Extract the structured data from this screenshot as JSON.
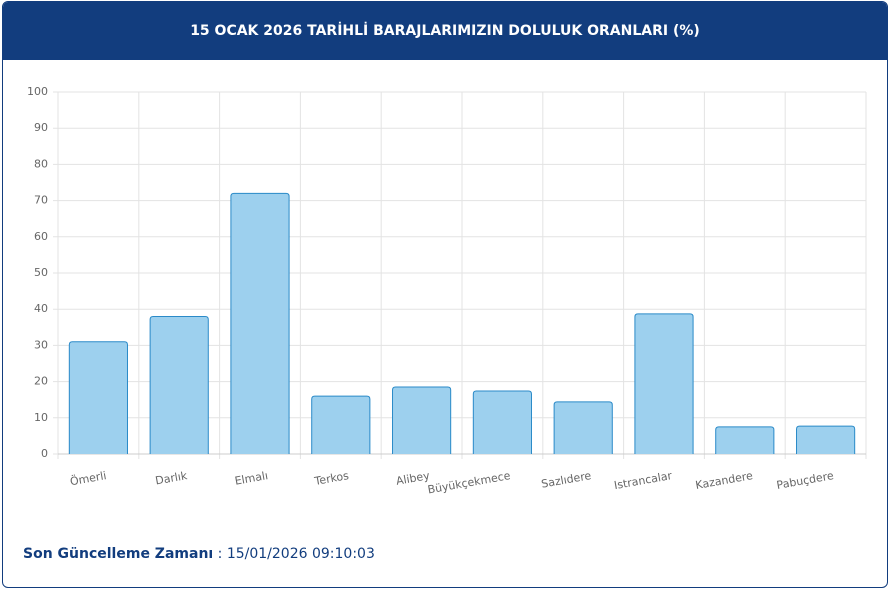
{
  "chart_data": {
    "type": "bar",
    "title": "15 OCAK 2026 TARİHLİ BARAJLARIMIZIN DOLULUK ORANLARI (%)",
    "categories": [
      "Ömerli",
      "Darlık",
      "Elmalı",
      "Terkos",
      "Alibey",
      "Büyükçekmece",
      "Sazlıdere",
      "Istrancalar",
      "Kazandere",
      "Pabuçdere"
    ],
    "values": [
      31,
      38,
      72,
      16,
      18.5,
      17.4,
      14.4,
      38.7,
      7.5,
      7.7
    ],
    "color": "#9dd0ee",
    "edge_color": "#2a8ac8",
    "ylim": [
      0,
      100
    ],
    "yticks": [
      0,
      10,
      20,
      30,
      40,
      50,
      60,
      70,
      80,
      90,
      100
    ],
    "grid": true
  },
  "footer": {
    "label": "Son Güncelleme Zamanı",
    "value": ": 15/01/2026 09:10:03"
  }
}
